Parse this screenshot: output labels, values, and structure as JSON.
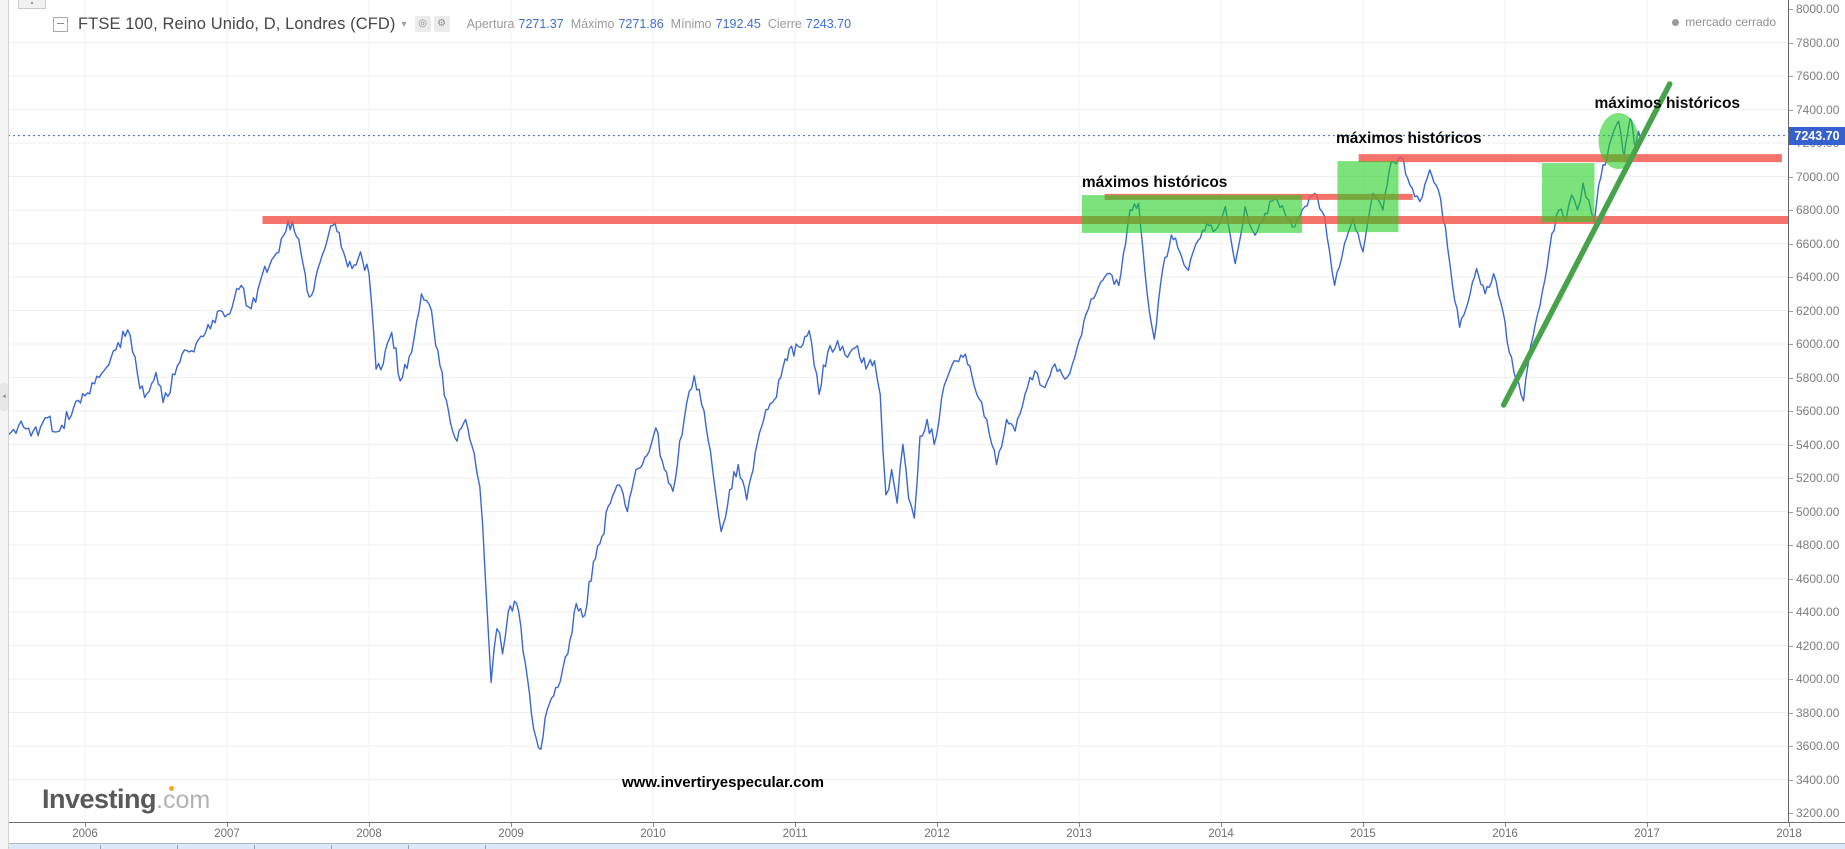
{
  "header": {
    "symbol_title": "FTSE 100, Reino Unido, D, Londres (CFD)",
    "ohlc": [
      {
        "label": "Apertura",
        "value": "7271.37"
      },
      {
        "label": "Máximo",
        "value": "7271.86"
      },
      {
        "label": "Mínimo",
        "value": "7192.45"
      },
      {
        "label": "Cierre",
        "value": "7243.70"
      }
    ],
    "market_status": "mercado cerrado"
  },
  "last_price": {
    "value": "7243.70"
  },
  "watermark": "www.invertiryespecular.com",
  "logo": {
    "main": "Investing",
    "suffix": ".com"
  },
  "colors": {
    "price_line": "#3a68cf",
    "resistance": "#f3544a",
    "highlight_green": "rgba(30,205,30,0.58)",
    "trend_green": "#47a34b",
    "last_price_bg": "#3560cd",
    "grid": "#efefef",
    "axis_text": "#7d7d7d"
  },
  "chart_data": {
    "type": "line",
    "title": "FTSE 100, Reino Unido, D, Londres (CFD)",
    "legend": [],
    "x_ticks": [
      2006,
      2007,
      2008,
      2009,
      2010,
      2011,
      2012,
      2013,
      2014,
      2015,
      2016,
      2017,
      2018
    ],
    "ylim": [
      3200,
      8000
    ],
    "y_tick_step": 200,
    "grid": true,
    "series": [
      {
        "name": "FTSE 100",
        "points": [
          [
            2005.46,
            5460
          ],
          [
            2005.55,
            5540
          ],
          [
            2005.62,
            5450
          ],
          [
            2005.72,
            5560
          ],
          [
            2005.82,
            5480
          ],
          [
            2005.92,
            5620
          ],
          [
            2006.0,
            5690
          ],
          [
            2006.1,
            5800
          ],
          [
            2006.2,
            5960
          ],
          [
            2006.3,
            6085
          ],
          [
            2006.37,
            5820
          ],
          [
            2006.42,
            5680
          ],
          [
            2006.5,
            5830
          ],
          [
            2006.55,
            5650
          ],
          [
            2006.65,
            5870
          ],
          [
            2006.75,
            5960
          ],
          [
            2006.85,
            6070
          ],
          [
            2006.95,
            6200
          ],
          [
            2007.02,
            6180
          ],
          [
            2007.1,
            6350
          ],
          [
            2007.17,
            6210
          ],
          [
            2007.25,
            6420
          ],
          [
            2007.33,
            6520
          ],
          [
            2007.4,
            6650
          ],
          [
            2007.46,
            6732
          ],
          [
            2007.52,
            6550
          ],
          [
            2007.58,
            6280
          ],
          [
            2007.64,
            6450
          ],
          [
            2007.7,
            6600
          ],
          [
            2007.76,
            6725
          ],
          [
            2007.82,
            6550
          ],
          [
            2007.88,
            6450
          ],
          [
            2007.94,
            6550
          ],
          [
            2008.0,
            6420
          ],
          [
            2008.05,
            5850
          ],
          [
            2008.1,
            5880
          ],
          [
            2008.16,
            6070
          ],
          [
            2008.22,
            5780
          ],
          [
            2008.3,
            5950
          ],
          [
            2008.37,
            6300
          ],
          [
            2008.44,
            6200
          ],
          [
            2008.5,
            5870
          ],
          [
            2008.56,
            5600
          ],
          [
            2008.62,
            5420
          ],
          [
            2008.68,
            5550
          ],
          [
            2008.74,
            5350
          ],
          [
            2008.78,
            5150
          ],
          [
            2008.82,
            4600
          ],
          [
            2008.86,
            3980
          ],
          [
            2008.9,
            4300
          ],
          [
            2008.94,
            4150
          ],
          [
            2008.98,
            4400
          ],
          [
            2009.04,
            4450
          ],
          [
            2009.1,
            4100
          ],
          [
            2009.16,
            3700
          ],
          [
            2009.21,
            3580
          ],
          [
            2009.27,
            3850
          ],
          [
            2009.33,
            3950
          ],
          [
            2009.4,
            4150
          ],
          [
            2009.46,
            4450
          ],
          [
            2009.52,
            4380
          ],
          [
            2009.58,
            4700
          ],
          [
            2009.64,
            4850
          ],
          [
            2009.7,
            5050
          ],
          [
            2009.76,
            5160
          ],
          [
            2009.82,
            5000
          ],
          [
            2009.88,
            5250
          ],
          [
            2009.94,
            5320
          ],
          [
            2010.02,
            5500
          ],
          [
            2010.08,
            5250
          ],
          [
            2010.14,
            5120
          ],
          [
            2010.22,
            5550
          ],
          [
            2010.29,
            5810
          ],
          [
            2010.36,
            5600
          ],
          [
            2010.42,
            5250
          ],
          [
            2010.48,
            4880
          ],
          [
            2010.54,
            5130
          ],
          [
            2010.6,
            5280
          ],
          [
            2010.66,
            5070
          ],
          [
            2010.72,
            5350
          ],
          [
            2010.78,
            5550
          ],
          [
            2010.84,
            5650
          ],
          [
            2010.9,
            5800
          ],
          [
            2010.96,
            5970
          ],
          [
            2011.04,
            5980
          ],
          [
            2011.1,
            6080
          ],
          [
            2011.17,
            5700
          ],
          [
            2011.23,
            5950
          ],
          [
            2011.3,
            6020
          ],
          [
            2011.37,
            5920
          ],
          [
            2011.44,
            5990
          ],
          [
            2011.5,
            5850
          ],
          [
            2011.56,
            5900
          ],
          [
            2011.6,
            5700
          ],
          [
            2011.64,
            5100
          ],
          [
            2011.68,
            5250
          ],
          [
            2011.72,
            5050
          ],
          [
            2011.76,
            5400
          ],
          [
            2011.8,
            5080
          ],
          [
            2011.84,
            4960
          ],
          [
            2011.88,
            5450
          ],
          [
            2011.93,
            5550
          ],
          [
            2011.98,
            5400
          ],
          [
            2012.05,
            5750
          ],
          [
            2012.12,
            5900
          ],
          [
            2012.2,
            5940
          ],
          [
            2012.28,
            5700
          ],
          [
            2012.35,
            5550
          ],
          [
            2012.42,
            5280
          ],
          [
            2012.49,
            5550
          ],
          [
            2012.55,
            5480
          ],
          [
            2012.62,
            5700
          ],
          [
            2012.69,
            5840
          ],
          [
            2012.76,
            5740
          ],
          [
            2012.83,
            5880
          ],
          [
            2012.9,
            5790
          ],
          [
            2012.97,
            5920
          ],
          [
            2013.05,
            6180
          ],
          [
            2013.12,
            6300
          ],
          [
            2013.2,
            6420
          ],
          [
            2013.28,
            6350
          ],
          [
            2013.36,
            6800
          ],
          [
            2013.42,
            6840
          ],
          [
            2013.48,
            6300
          ],
          [
            2013.53,
            6030
          ],
          [
            2013.59,
            6450
          ],
          [
            2013.65,
            6650
          ],
          [
            2013.71,
            6550
          ],
          [
            2013.77,
            6440
          ],
          [
            2013.84,
            6620
          ],
          [
            2013.9,
            6720
          ],
          [
            2013.96,
            6680
          ],
          [
            2014.03,
            6820
          ],
          [
            2014.1,
            6480
          ],
          [
            2014.17,
            6820
          ],
          [
            2014.24,
            6650
          ],
          [
            2014.31,
            6780
          ],
          [
            2014.38,
            6870
          ],
          [
            2014.45,
            6780
          ],
          [
            2014.52,
            6700
          ],
          [
            2014.59,
            6820
          ],
          [
            2014.66,
            6900
          ],
          [
            2014.73,
            6760
          ],
          [
            2014.8,
            6350
          ],
          [
            2014.87,
            6600
          ],
          [
            2014.93,
            6750
          ],
          [
            2015.0,
            6550
          ],
          [
            2015.07,
            6900
          ],
          [
            2015.14,
            6800
          ],
          [
            2015.2,
            7090
          ],
          [
            2015.27,
            7115
          ],
          [
            2015.33,
            6950
          ],
          [
            2015.4,
            6850
          ],
          [
            2015.47,
            7040
          ],
          [
            2015.53,
            6920
          ],
          [
            2015.58,
            6700
          ],
          [
            2015.63,
            6350
          ],
          [
            2015.68,
            6100
          ],
          [
            2015.74,
            6250
          ],
          [
            2015.8,
            6450
          ],
          [
            2015.86,
            6300
          ],
          [
            2015.92,
            6420
          ],
          [
            2015.97,
            6250
          ],
          [
            2016.03,
            5950
          ],
          [
            2016.08,
            5780
          ],
          [
            2016.13,
            5660
          ],
          [
            2016.18,
            5990
          ],
          [
            2016.23,
            6180
          ],
          [
            2016.28,
            6380
          ],
          [
            2016.33,
            6660
          ],
          [
            2016.38,
            6800
          ],
          [
            2016.43,
            6740
          ],
          [
            2016.47,
            6890
          ],
          [
            2016.51,
            6800
          ],
          [
            2016.55,
            6960
          ],
          [
            2016.59,
            6860
          ],
          [
            2016.63,
            6730
          ],
          [
            2016.66,
            6950
          ],
          [
            2016.69,
            7070
          ],
          [
            2016.72,
            7120
          ],
          [
            2016.75,
            7230
          ],
          [
            2016.78,
            7300
          ],
          [
            2016.8,
            7330
          ],
          [
            2016.82,
            7230
          ],
          [
            2016.84,
            7130
          ],
          [
            2016.86,
            7240
          ],
          [
            2016.88,
            7345
          ],
          [
            2016.9,
            7280
          ],
          [
            2016.92,
            7180
          ],
          [
            2016.94,
            7270
          ],
          [
            2016.96,
            7244
          ]
        ]
      }
    ],
    "annotations": {
      "last_price_line": {
        "price": 7243.7
      },
      "resistance_lines": [
        {
          "price": 6740,
          "from_year": 2007.25,
          "to_year": 2018.0,
          "thickness": 8
        },
        {
          "price": 7110,
          "from_year": 2014.97,
          "to_year": 2017.95,
          "thickness": 8
        },
        {
          "price": 6878,
          "from_year": 2013.18,
          "to_year": 2015.35,
          "thickness": 6
        }
      ],
      "highlight_boxes": [
        {
          "from_year": 2013.02,
          "to_year": 2014.57,
          "price_low": 6663,
          "price_high": 6889
        },
        {
          "from_year": 2014.82,
          "to_year": 2015.25,
          "price_low": 6668,
          "price_high": 7092
        },
        {
          "from_year": 2016.26,
          "to_year": 2016.63,
          "price_low": 6728,
          "price_high": 7080
        }
      ],
      "ellipse": {
        "year": 2016.8,
        "price": 7212,
        "rx_years": 0.141,
        "ry_points": 167
      },
      "trend_line": {
        "from_year": 2015.99,
        "from_price": 5636,
        "to_year": 2017.16,
        "to_price": 7552
      },
      "labels": [
        {
          "text": "máximos históricos",
          "year": 2013.02,
          "price": 6920
        },
        {
          "text": "máximos históricos",
          "year": 2014.81,
          "price": 7180
        },
        {
          "text": "máximos históricos",
          "year": 2016.63,
          "price": 7390
        }
      ]
    }
  }
}
